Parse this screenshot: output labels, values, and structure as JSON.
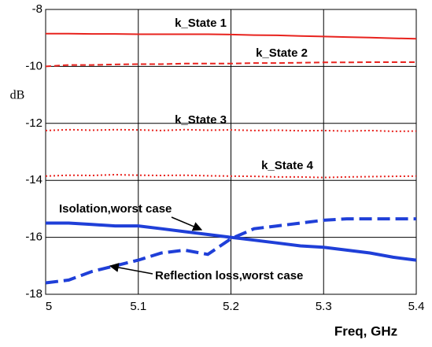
{
  "chart_data": {
    "type": "line",
    "y_label": "dB",
    "x_label": "Freq, GHz",
    "x": [
      5,
      5.025,
      5.05,
      5.075,
      5.1,
      5.125,
      5.15,
      5.175,
      5.2,
      5.225,
      5.25,
      5.275,
      5.3,
      5.325,
      5.35,
      5.375,
      5.4
    ],
    "series": [
      {
        "name": "k_State 1",
        "color": "#e8231e",
        "style": "solid",
        "width": 2,
        "values": [
          -8.85,
          -8.85,
          -8.86,
          -8.86,
          -8.87,
          -8.87,
          -8.87,
          -8.87,
          -8.88,
          -8.9,
          -8.91,
          -8.93,
          -8.95,
          -8.97,
          -8.99,
          -9.01,
          -9.03
        ]
      },
      {
        "name": "k_State 2",
        "color": "#e8231e",
        "style": "dashed",
        "width": 2,
        "values": [
          -10.0,
          -9.95,
          -9.95,
          -9.93,
          -9.92,
          -9.92,
          -9.9,
          -9.9,
          -9.9,
          -9.88,
          -9.88,
          -9.87,
          -9.86,
          -9.86,
          -9.85,
          -9.85,
          -9.85
        ]
      },
      {
        "name": "k_State 3",
        "color": "#e8231e",
        "style": "dotted",
        "width": 2,
        "values": [
          -12.25,
          -12.22,
          -12.24,
          -12.22,
          -12.23,
          -12.25,
          -12.22,
          -12.24,
          -12.23,
          -12.25,
          -12.24,
          -12.26,
          -12.25,
          -12.27,
          -12.25,
          -12.28,
          -12.27
        ]
      },
      {
        "name": "k_State 4",
        "color": "#e8231e",
        "style": "dotted",
        "width": 2,
        "values": [
          -13.85,
          -13.82,
          -13.83,
          -13.8,
          -13.82,
          -13.83,
          -13.82,
          -13.84,
          -13.85,
          -13.86,
          -13.88,
          -13.88,
          -13.9,
          -13.88,
          -13.87,
          -13.86,
          -13.85
        ]
      },
      {
        "name": "Isolation,worst case",
        "color": "#1f3fd8",
        "style": "solid",
        "width": 4,
        "values": [
          -15.5,
          -15.5,
          -15.55,
          -15.6,
          -15.6,
          -15.7,
          -15.8,
          -15.9,
          -16.0,
          -16.1,
          -16.2,
          -16.3,
          -16.35,
          -16.45,
          -16.55,
          -16.7,
          -16.8
        ]
      },
      {
        "name": "Reflection loss,worst case",
        "color": "#1f3fd8",
        "style": "dashed",
        "width": 4,
        "values": [
          -17.6,
          -17.5,
          -17.2,
          -17.0,
          -16.8,
          -16.55,
          -16.45,
          -16.6,
          -16.05,
          -15.7,
          -15.6,
          -15.5,
          -15.4,
          -15.35,
          -15.35,
          -15.35,
          -15.35
        ]
      }
    ],
    "xlim": [
      5,
      5.4
    ],
    "xticks": [
      5,
      5.1,
      5.2,
      5.3,
      5.4
    ],
    "ylim": [
      -18,
      -8
    ],
    "yticks": [
      -8,
      -10,
      -12,
      -14,
      -16,
      -18
    ],
    "grid": true
  }
}
